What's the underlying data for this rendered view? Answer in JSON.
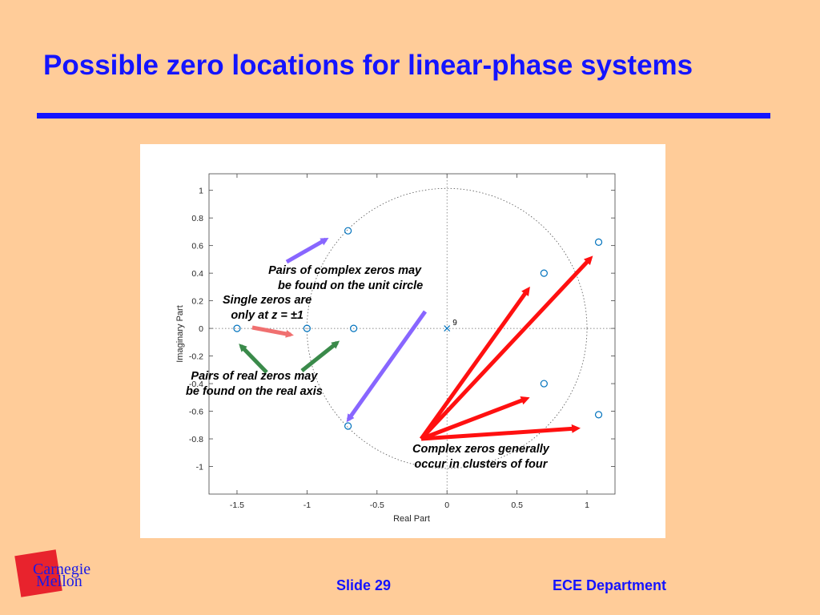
{
  "slide": {
    "title": "Possible zero locations for linear-phase systems",
    "number_label": "Slide 29",
    "department": "ECE Department"
  },
  "logo": {
    "line1": "Carnegie",
    "line2": "Mellon"
  },
  "annotations": {
    "complex_unit_circle": [
      "Pairs of complex zeros may",
      "be found on the unit circle"
    ],
    "single_zeros": [
      "Single zeros are",
      "only at z = ±1"
    ],
    "real_pairs": [
      "Pairs of real zeros may",
      "be found on the real axis"
    ],
    "clusters": [
      "Complex zeros generally",
      "occur in clusters of four"
    ]
  },
  "colors": {
    "background": "#FFCC99",
    "title": "#1414FF",
    "marker": "#0072BD",
    "arrow_purple": "#8866FF",
    "arrow_pink": "#F07070",
    "arrow_green": "#3A8A4A",
    "arrow_red": "#FF1010"
  },
  "chart_data": {
    "type": "scatter",
    "xlabel": "Real Part",
    "ylabel": "Imaginary Part",
    "xlim": [
      -1.7,
      1.2
    ],
    "ylim": [
      -1.2,
      1.12
    ],
    "xticks": [
      -1.5,
      -1,
      -0.5,
      0,
      0.5,
      1
    ],
    "xtick_labels": [
      "-1.5",
      "-1",
      "-0.5",
      "0",
      "0.5",
      "1"
    ],
    "yticks": [
      1,
      0.8,
      0.6,
      0.4,
      0.2,
      0,
      -0.2,
      -0.4,
      -0.6,
      -0.8,
      -1
    ],
    "ytick_labels": [
      "1",
      "0.8",
      "0.6",
      "0.4",
      "0.2",
      "0",
      "-0.2",
      "-0.4",
      "-0.6",
      "-0.8",
      "-1"
    ],
    "unit_circle": true,
    "zeros": [
      {
        "x": -1.5,
        "y": 0
      },
      {
        "x": -1,
        "y": 0
      },
      {
        "x": -0.667,
        "y": 0
      },
      {
        "x": -0.707,
        "y": 0.707
      },
      {
        "x": -0.707,
        "y": -0.707
      },
      {
        "x": 0.693,
        "y": 0.4
      },
      {
        "x": 0.693,
        "y": -0.4
      },
      {
        "x": 1.083,
        "y": 0.625
      },
      {
        "x": 1.083,
        "y": -0.625
      }
    ],
    "poles": [
      {
        "x": 0,
        "y": 0,
        "label": "9"
      }
    ]
  }
}
